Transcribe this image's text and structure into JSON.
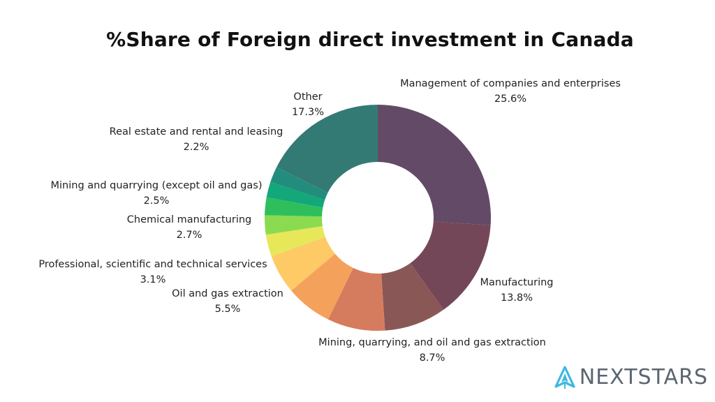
{
  "chart_data": {
    "type": "pie",
    "title": "%Share of Foreign direct investment in Canada",
    "slices": [
      {
        "label": "Management of companies and enterprises",
        "value": 25.6,
        "value_label": "25.6%",
        "color": "#634a67"
      },
      {
        "label": "Manufacturing",
        "value": 13.8,
        "value_label": "13.8%",
        "color": "#744758"
      },
      {
        "label": "Mining, quarrying, and oil and gas extraction",
        "value": 8.7,
        "value_label": "8.7%",
        "color": "#8a5757"
      },
      {
        "label": "",
        "value": 8.1,
        "value_label": "",
        "color": "#d67c5e"
      },
      {
        "label": "",
        "value": 6.5,
        "value_label": "",
        "color": "#f4a25b"
      },
      {
        "label": "Oil and gas extraction",
        "value": 5.5,
        "value_label": "5.5%",
        "color": "#fdca66"
      },
      {
        "label": "Professional, scientific and technical services",
        "value": 3.1,
        "value_label": "3.1%",
        "color": "#e6e85a"
      },
      {
        "label": "Chemical manufacturing",
        "value": 2.7,
        "value_label": "2.7%",
        "color": "#8adb50"
      },
      {
        "label": "Mining and quarrying (except oil and gas)",
        "value": 2.5,
        "value_label": "2.5%",
        "color": "#2ebf5c"
      },
      {
        "label": "Real estate and rental and leasing",
        "value": 2.2,
        "value_label": "2.2%",
        "color": "#13a77a"
      },
      {
        "label": "",
        "value": 2.2,
        "value_label": "",
        "color": "#228d7d"
      },
      {
        "label": "Other",
        "value": 17.3,
        "value_label": "17.3%",
        "color": "#347a74"
      }
    ]
  },
  "logo": {
    "text": "NEXTSTARS",
    "icon": "rocket-icon",
    "icon_color": "#3db8e0"
  }
}
